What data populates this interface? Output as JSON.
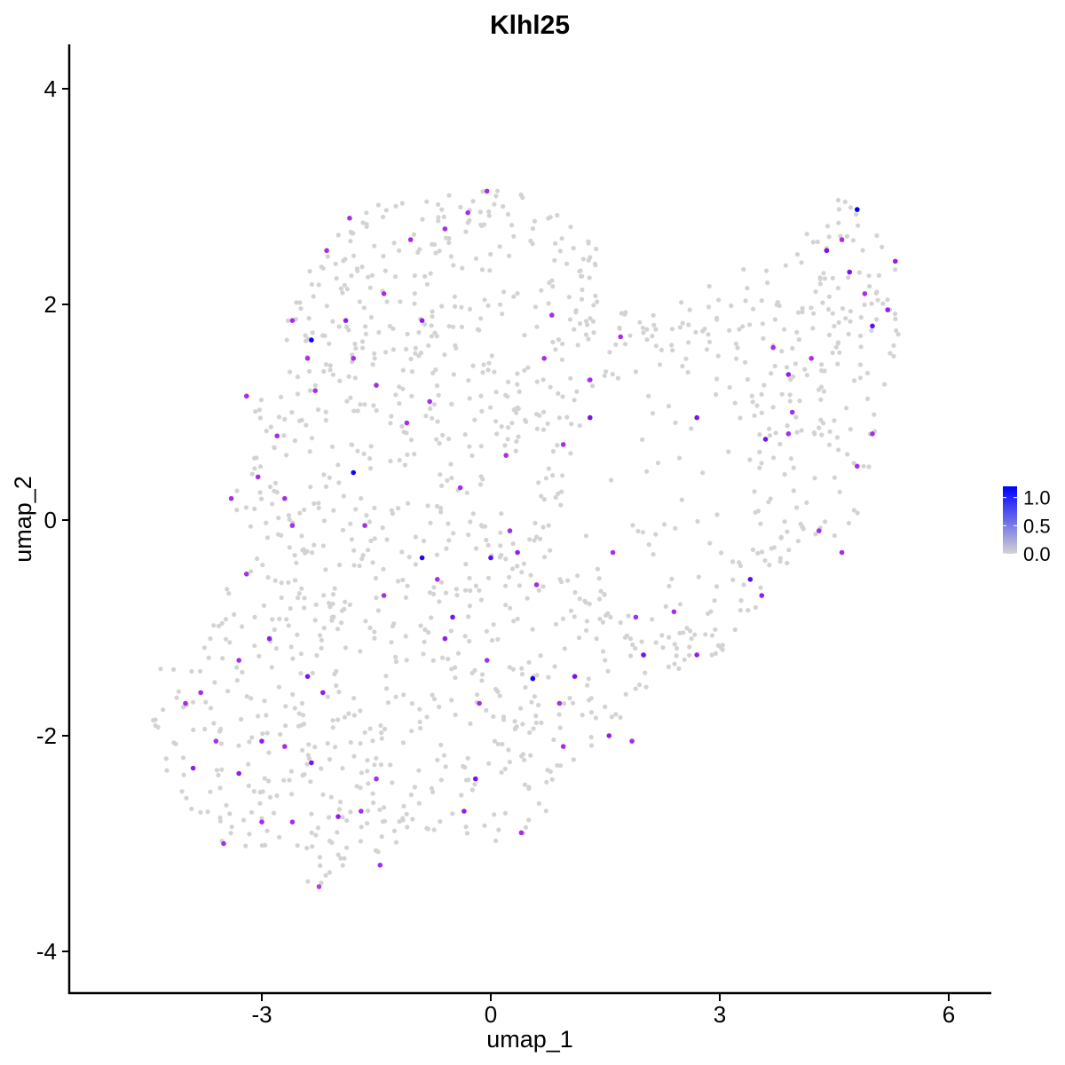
{
  "chart_data": {
    "type": "scatter",
    "title": "Klhl25",
    "xlabel": "umap_1",
    "ylabel": "umap_2",
    "xlim": [
      -5.7,
      6.5
    ],
    "ylim": [
      -4.3,
      4.4
    ],
    "xticks": [
      -3,
      0,
      3,
      6
    ],
    "yticks": [
      -4,
      -2,
      0,
      2,
      4
    ],
    "x_tick_labels": [
      "-3",
      "0",
      "3",
      "6"
    ],
    "y_tick_labels": [
      "-4",
      "-2",
      "0",
      "2",
      "4"
    ],
    "grid": false,
    "color_scale": {
      "low_color": "#d3d3d3",
      "high_color": "#0000ff",
      "min": 0.0,
      "max": 1.2,
      "legend_ticks": [
        0.0,
        0.5,
        1.0
      ],
      "legend_tick_labels": [
        "0.0",
        "0.5",
        "1.0"
      ],
      "legend_position": "right"
    },
    "n_background_cells": 1400,
    "expressing_points": [
      {
        "x": 4.8,
        "y": 2.88,
        "v": 1.2
      },
      {
        "x": -2.35,
        "y": 1.67,
        "v": 1.15
      },
      {
        "x": -1.8,
        "y": 0.44,
        "v": 1.15
      },
      {
        "x": -0.9,
        "y": -0.35,
        "v": 1.1
      },
      {
        "x": 0.55,
        "y": -1.47,
        "v": 1.15
      },
      {
        "x": 5.0,
        "y": 1.8,
        "v": 0.9
      },
      {
        "x": 4.7,
        "y": 2.3,
        "v": 0.8
      },
      {
        "x": 4.4,
        "y": 2.5,
        "v": 0.8
      },
      {
        "x": 5.3,
        "y": 2.4,
        "v": 0.7
      },
      {
        "x": 5.2,
        "y": 1.95,
        "v": 0.7
      },
      {
        "x": 4.9,
        "y": 2.1,
        "v": 0.6
      },
      {
        "x": 4.6,
        "y": 2.6,
        "v": 0.6
      },
      {
        "x": 3.9,
        "y": 1.35,
        "v": 0.7
      },
      {
        "x": 3.7,
        "y": 1.6,
        "v": 0.6
      },
      {
        "x": 3.6,
        "y": 0.75,
        "v": 0.8
      },
      {
        "x": 3.9,
        "y": 0.8,
        "v": 0.6
      },
      {
        "x": 3.4,
        "y": -0.55,
        "v": 0.9
      },
      {
        "x": 3.55,
        "y": -0.7,
        "v": 0.7
      },
      {
        "x": 2.7,
        "y": -1.25,
        "v": 0.7
      },
      {
        "x": 2.0,
        "y": -1.25,
        "v": 0.8
      },
      {
        "x": 1.7,
        "y": 1.7,
        "v": 0.6
      },
      {
        "x": 1.3,
        "y": 1.3,
        "v": 0.6
      },
      {
        "x": 1.3,
        "y": 0.95,
        "v": 0.8
      },
      {
        "x": 0.7,
        "y": 1.5,
        "v": 0.6
      },
      {
        "x": 0.8,
        "y": 1.9,
        "v": 0.6
      },
      {
        "x": 0.95,
        "y": 0.7,
        "v": 0.6
      },
      {
        "x": 1.1,
        "y": -1.45,
        "v": 0.8
      },
      {
        "x": 0.9,
        "y": -1.7,
        "v": 0.6
      },
      {
        "x": 0.35,
        "y": -0.3,
        "v": 0.7
      },
      {
        "x": 0.25,
        "y": -0.1,
        "v": 0.6
      },
      {
        "x": -0.5,
        "y": -0.9,
        "v": 0.8
      },
      {
        "x": -0.7,
        "y": -0.55,
        "v": 0.6
      },
      {
        "x": -0.9,
        "y": 1.85,
        "v": 0.7
      },
      {
        "x": -1.1,
        "y": 0.9,
        "v": 0.6
      },
      {
        "x": -1.4,
        "y": 2.1,
        "v": 0.6
      },
      {
        "x": -1.9,
        "y": 1.85,
        "v": 0.7
      },
      {
        "x": -2.15,
        "y": 2.5,
        "v": 0.6
      },
      {
        "x": -1.85,
        "y": 2.8,
        "v": 0.6
      },
      {
        "x": -2.8,
        "y": 0.78,
        "v": 0.6
      },
      {
        "x": -2.7,
        "y": 0.2,
        "v": 0.6
      },
      {
        "x": -2.6,
        "y": -0.05,
        "v": 0.6
      },
      {
        "x": -3.2,
        "y": -0.5,
        "v": 0.6
      },
      {
        "x": -2.2,
        "y": -1.6,
        "v": 0.7
      },
      {
        "x": -2.4,
        "y": -1.45,
        "v": 0.8
      },
      {
        "x": -3.0,
        "y": -2.05,
        "v": 0.7
      },
      {
        "x": -2.35,
        "y": -2.25,
        "v": 0.8
      },
      {
        "x": -2.0,
        "y": -2.75,
        "v": 0.7
      },
      {
        "x": -3.6,
        "y": -2.05,
        "v": 0.6
      },
      {
        "x": -3.9,
        "y": -2.3,
        "v": 0.7
      },
      {
        "x": -3.8,
        "y": -1.6,
        "v": 0.6
      },
      {
        "x": -4.0,
        "y": -1.7,
        "v": 0.6
      },
      {
        "x": -1.45,
        "y": -3.2,
        "v": 0.6
      },
      {
        "x": -2.25,
        "y": -3.4,
        "v": 0.5
      },
      {
        "x": -0.35,
        "y": -2.7,
        "v": 0.7
      },
      {
        "x": -0.2,
        "y": -2.4,
        "v": 0.8
      },
      {
        "x": 0.4,
        "y": -2.9,
        "v": 0.6
      },
      {
        "x": -0.05,
        "y": 3.05,
        "v": 0.6
      },
      {
        "x": -0.3,
        "y": 2.85,
        "v": 0.6
      },
      {
        "x": -0.6,
        "y": 2.7,
        "v": 0.6
      },
      {
        "x": -1.05,
        "y": 2.6,
        "v": 0.6
      },
      {
        "x": -2.6,
        "y": 1.85,
        "v": 0.6
      },
      {
        "x": -2.4,
        "y": 1.5,
        "v": 0.6
      },
      {
        "x": -1.8,
        "y": 1.5,
        "v": 0.6
      },
      {
        "x": -1.65,
        "y": -0.05,
        "v": 0.6
      },
      {
        "x": -1.4,
        "y": -0.7,
        "v": 0.6
      },
      {
        "x": -0.8,
        "y": 1.1,
        "v": 0.6
      },
      {
        "x": -0.4,
        "y": 0.3,
        "v": 0.6
      },
      {
        "x": 0.2,
        "y": 0.6,
        "v": 0.6
      },
      {
        "x": 1.9,
        "y": -0.9,
        "v": 0.6
      },
      {
        "x": 2.4,
        "y": -0.85,
        "v": 0.6
      },
      {
        "x": 1.6,
        "y": -0.3,
        "v": 0.6
      },
      {
        "x": 2.7,
        "y": 0.95,
        "v": 0.8
      },
      {
        "x": 4.2,
        "y": 1.5,
        "v": 0.6
      },
      {
        "x": 4.8,
        "y": 0.5,
        "v": 0.6
      },
      {
        "x": 5.0,
        "y": 0.8,
        "v": 0.6
      },
      {
        "x": 4.3,
        "y": -0.1,
        "v": 0.6
      },
      {
        "x": 4.6,
        "y": -0.3,
        "v": 0.6
      },
      {
        "x": -3.4,
        "y": 0.2,
        "v": 0.6
      },
      {
        "x": -3.05,
        "y": 0.4,
        "v": 0.6
      },
      {
        "x": -2.9,
        "y": -1.1,
        "v": 0.7
      },
      {
        "x": -3.3,
        "y": -1.3,
        "v": 0.6
      },
      {
        "x": -0.05,
        "y": -1.3,
        "v": 0.6
      },
      {
        "x": 0.6,
        "y": -0.6,
        "v": 0.6
      },
      {
        "x": 0.0,
        "y": -0.35,
        "v": 0.9
      },
      {
        "x": -0.15,
        "y": -1.7,
        "v": 0.6
      },
      {
        "x": -1.5,
        "y": -2.4,
        "v": 0.6
      },
      {
        "x": -1.7,
        "y": -2.7,
        "v": 0.6
      },
      {
        "x": -2.6,
        "y": -2.8,
        "v": 0.6
      },
      {
        "x": -3.0,
        "y": -2.8,
        "v": 0.6
      },
      {
        "x": -3.5,
        "y": -3.0,
        "v": 0.6
      },
      {
        "x": -3.3,
        "y": -2.35,
        "v": 0.7
      },
      {
        "x": -2.7,
        "y": -2.1,
        "v": 0.6
      },
      {
        "x": 1.55,
        "y": -2.0,
        "v": 0.7
      },
      {
        "x": 1.85,
        "y": -2.05,
        "v": 0.6
      },
      {
        "x": 0.95,
        "y": -2.1,
        "v": 0.6
      },
      {
        "x": -0.6,
        "y": -1.1,
        "v": 0.7
      },
      {
        "x": -1.5,
        "y": 1.25,
        "v": 0.6
      },
      {
        "x": -2.3,
        "y": 1.2,
        "v": 0.6
      },
      {
        "x": -3.2,
        "y": 1.15,
        "v": 0.6
      },
      {
        "x": 3.95,
        "y": 1.0,
        "v": 0.6
      }
    ]
  }
}
